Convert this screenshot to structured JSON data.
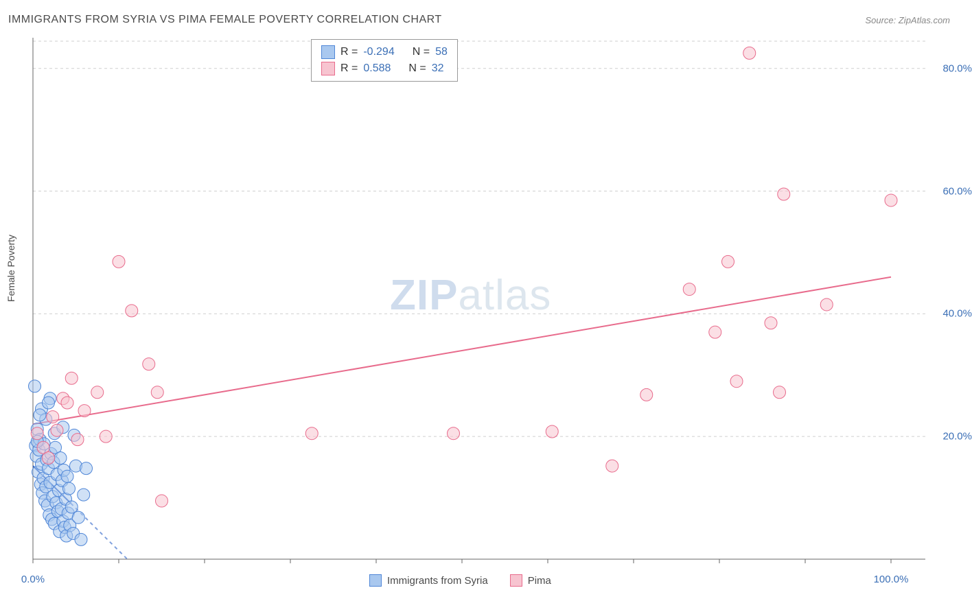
{
  "title": "IMMIGRANTS FROM SYRIA VS PIMA FEMALE POVERTY CORRELATION CHART",
  "source": "Source: ZipAtlas.com",
  "y_axis_label": "Female Poverty",
  "watermark": {
    "zip": "ZIP",
    "atlas": "atlas"
  },
  "chart": {
    "type": "scatter",
    "xlim": [
      0,
      100
    ],
    "ylim": [
      0,
      85
    ],
    "x_ticks": [
      0,
      100
    ],
    "x_tick_labels": [
      "0.0%",
      "100.0%"
    ],
    "y_ticks": [
      20,
      40,
      60,
      80
    ],
    "y_tick_labels": [
      "20.0%",
      "40.0%",
      "60.0%",
      "80.0%"
    ],
    "grid_color": "#cfcfcf",
    "grid_dash": "4,4",
    "axis_color": "#666666",
    "background_color": "#ffffff",
    "series": [
      {
        "name": "Immigrants from Syria",
        "color_fill": "#a9c8ef",
        "color_stroke": "#4f86d7",
        "fill_opacity": 0.55,
        "marker_radius": 9,
        "r_value": "-0.294",
        "n_value": "58",
        "trend": {
          "x1": 0,
          "y1": 15.2,
          "x2": 11,
          "y2": 0,
          "color": "#2d63c9",
          "width": 2,
          "solid_frac": 0.4
        },
        "points": [
          [
            0.2,
            28.2
          ],
          [
            0.3,
            18.5
          ],
          [
            0.4,
            16.8
          ],
          [
            0.5,
            21.2
          ],
          [
            0.6,
            14.2
          ],
          [
            0.7,
            17.8
          ],
          [
            0.8,
            19.5
          ],
          [
            0.9,
            12.2
          ],
          [
            1.0,
            15.5
          ],
          [
            1.1,
            10.8
          ],
          [
            1.2,
            13.2
          ],
          [
            1.3,
            18.8
          ],
          [
            1.4,
            9.5
          ],
          [
            1.5,
            11.8
          ],
          [
            1.6,
            16.2
          ],
          [
            1.7,
            8.8
          ],
          [
            1.8,
            14.8
          ],
          [
            1.9,
            7.2
          ],
          [
            2.0,
            12.5
          ],
          [
            2.1,
            17.2
          ],
          [
            2.2,
            6.5
          ],
          [
            2.3,
            10.2
          ],
          [
            2.4,
            15.8
          ],
          [
            2.5,
            5.8
          ],
          [
            2.6,
            18.2
          ],
          [
            2.7,
            9.2
          ],
          [
            2.8,
            13.8
          ],
          [
            2.9,
            7.8
          ],
          [
            3.0,
            11.2
          ],
          [
            3.1,
            4.5
          ],
          [
            3.2,
            16.5
          ],
          [
            3.3,
            8.2
          ],
          [
            3.4,
            12.8
          ],
          [
            3.5,
            6.2
          ],
          [
            3.6,
            14.5
          ],
          [
            3.7,
            5.2
          ],
          [
            3.8,
            9.8
          ],
          [
            3.9,
            3.8
          ],
          [
            4.0,
            13.5
          ],
          [
            4.1,
            7.5
          ],
          [
            4.2,
            11.5
          ],
          [
            4.3,
            5.5
          ],
          [
            4.5,
            8.5
          ],
          [
            4.7,
            4.2
          ],
          [
            5.0,
            15.2
          ],
          [
            5.3,
            6.8
          ],
          [
            5.6,
            3.2
          ],
          [
            5.9,
            10.5
          ],
          [
            1.0,
            24.5
          ],
          [
            1.5,
            22.8
          ],
          [
            2.0,
            26.2
          ],
          [
            0.8,
            23.5
          ],
          [
            1.8,
            25.5
          ],
          [
            0.5,
            19.2
          ],
          [
            2.5,
            20.5
          ],
          [
            3.5,
            21.5
          ],
          [
            4.8,
            20.2
          ],
          [
            6.2,
            14.8
          ]
        ]
      },
      {
        "name": "Pima",
        "color_fill": "#f7c4d0",
        "color_stroke": "#e86b8c",
        "fill_opacity": 0.55,
        "marker_radius": 9,
        "r_value": "0.588",
        "n_value": "32",
        "trend": {
          "x1": 0,
          "y1": 22,
          "x2": 100,
          "y2": 46,
          "color": "#e86b8c",
          "width": 2,
          "solid_frac": 1.0
        },
        "points": [
          [
            0.5,
            20.5
          ],
          [
            1.2,
            18.2
          ],
          [
            1.8,
            16.5
          ],
          [
            2.3,
            23.2
          ],
          [
            2.8,
            21.0
          ],
          [
            3.5,
            26.2
          ],
          [
            4.0,
            25.5
          ],
          [
            4.5,
            29.5
          ],
          [
            5.2,
            19.5
          ],
          [
            6.0,
            24.2
          ],
          [
            7.5,
            27.2
          ],
          [
            10.0,
            48.5
          ],
          [
            11.5,
            40.5
          ],
          [
            13.5,
            31.8
          ],
          [
            14.5,
            27.2
          ],
          [
            15.0,
            9.5
          ],
          [
            32.5,
            20.5
          ],
          [
            49.0,
            20.5
          ],
          [
            60.5,
            20.8
          ],
          [
            67.5,
            15.2
          ],
          [
            71.5,
            26.8
          ],
          [
            76.5,
            44.0
          ],
          [
            79.5,
            37.0
          ],
          [
            81.0,
            48.5
          ],
          [
            82.0,
            29.0
          ],
          [
            83.5,
            82.5
          ],
          [
            86.0,
            38.5
          ],
          [
            87.0,
            27.2
          ],
          [
            87.5,
            59.5
          ],
          [
            92.5,
            41.5
          ],
          [
            100.0,
            58.5
          ],
          [
            8.5,
            20.0
          ]
        ]
      }
    ]
  },
  "legend_top": {
    "rows": [
      {
        "swatch_fill": "#a9c8ef",
        "swatch_stroke": "#4f86d7",
        "r_label": "R =",
        "r_val": "-0.294",
        "n_label": "N =",
        "n_val": "58"
      },
      {
        "swatch_fill": "#f7c4d0",
        "swatch_stroke": "#e86b8c",
        "r_label": "R =",
        "r_val": " 0.588",
        "n_label": "N =",
        "n_val": "32"
      }
    ]
  },
  "legend_bottom": {
    "items": [
      {
        "swatch_fill": "#a9c8ef",
        "swatch_stroke": "#4f86d7",
        "label": "Immigrants from Syria"
      },
      {
        "swatch_fill": "#f7c4d0",
        "swatch_stroke": "#e86b8c",
        "label": "Pima"
      }
    ]
  }
}
